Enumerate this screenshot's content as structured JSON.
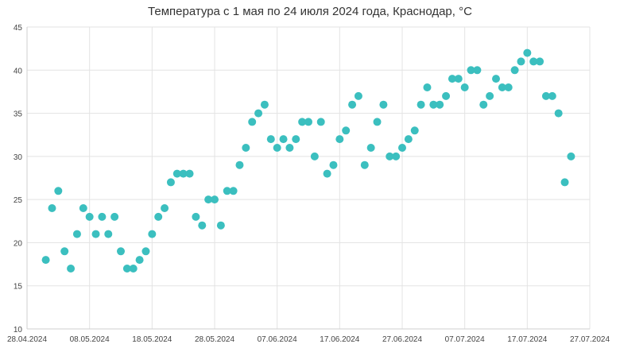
{
  "chart_data": {
    "type": "scatter",
    "title": "Температура с 1 мая по 24 июля 2024 года, Краснодар, °С",
    "xlabel": "",
    "ylabel": "",
    "x_type": "date",
    "xlim": [
      "2024-04-28",
      "2024-07-27"
    ],
    "ylim": [
      10,
      45
    ],
    "x_ticks": [
      "28.04.2024",
      "08.05.2024",
      "18.05.2024",
      "28.05.2024",
      "07.06.2024",
      "17.06.2024",
      "27.06.2024",
      "07.07.2024",
      "17.07.2024",
      "27.07.2024"
    ],
    "y_ticks": [
      10,
      15,
      20,
      25,
      30,
      35,
      40,
      45
    ],
    "grid": true,
    "legend": "none",
    "color": "#3bbfbf",
    "x": [
      "2024-05-01",
      "2024-05-02",
      "2024-05-03",
      "2024-05-04",
      "2024-05-05",
      "2024-05-06",
      "2024-05-07",
      "2024-05-08",
      "2024-05-09",
      "2024-05-10",
      "2024-05-11",
      "2024-05-12",
      "2024-05-13",
      "2024-05-14",
      "2024-05-15",
      "2024-05-16",
      "2024-05-17",
      "2024-05-18",
      "2024-05-19",
      "2024-05-20",
      "2024-05-21",
      "2024-05-22",
      "2024-05-23",
      "2024-05-24",
      "2024-05-25",
      "2024-05-26",
      "2024-05-27",
      "2024-05-28",
      "2024-05-29",
      "2024-05-30",
      "2024-05-31",
      "2024-06-01",
      "2024-06-02",
      "2024-06-03",
      "2024-06-04",
      "2024-06-05",
      "2024-06-06",
      "2024-06-07",
      "2024-06-08",
      "2024-06-09",
      "2024-06-10",
      "2024-06-11",
      "2024-06-12",
      "2024-06-13",
      "2024-06-14",
      "2024-06-15",
      "2024-06-16",
      "2024-06-17",
      "2024-06-18",
      "2024-06-19",
      "2024-06-20",
      "2024-06-21",
      "2024-06-22",
      "2024-06-23",
      "2024-06-24",
      "2024-06-25",
      "2024-06-26",
      "2024-06-27",
      "2024-06-28",
      "2024-06-29",
      "2024-06-30",
      "2024-07-01",
      "2024-07-02",
      "2024-07-03",
      "2024-07-04",
      "2024-07-05",
      "2024-07-06",
      "2024-07-07",
      "2024-07-08",
      "2024-07-09",
      "2024-07-10",
      "2024-07-11",
      "2024-07-12",
      "2024-07-13",
      "2024-07-14",
      "2024-07-15",
      "2024-07-16",
      "2024-07-17",
      "2024-07-18",
      "2024-07-19",
      "2024-07-20",
      "2024-07-21",
      "2024-07-22",
      "2024-07-23",
      "2024-07-24"
    ],
    "y": [
      18,
      24,
      26,
      19,
      17,
      21,
      24,
      23,
      21,
      23,
      21,
      23,
      19,
      17,
      17,
      18,
      19,
      21,
      23,
      24,
      27,
      28,
      28,
      28,
      23,
      22,
      25,
      25,
      22,
      26,
      26,
      29,
      31,
      34,
      35,
      36,
      32,
      31,
      32,
      31,
      32,
      34,
      34,
      30,
      34,
      28,
      29,
      32,
      33,
      36,
      37,
      29,
      31,
      34,
      36,
      30,
      30,
      31,
      32,
      33,
      36,
      38,
      36,
      36,
      37,
      39,
      39,
      38,
      40,
      40,
      36,
      37,
      39,
      38,
      38,
      40,
      41,
      42,
      41,
      41,
      37,
      37,
      35,
      27,
      30
    ]
  }
}
